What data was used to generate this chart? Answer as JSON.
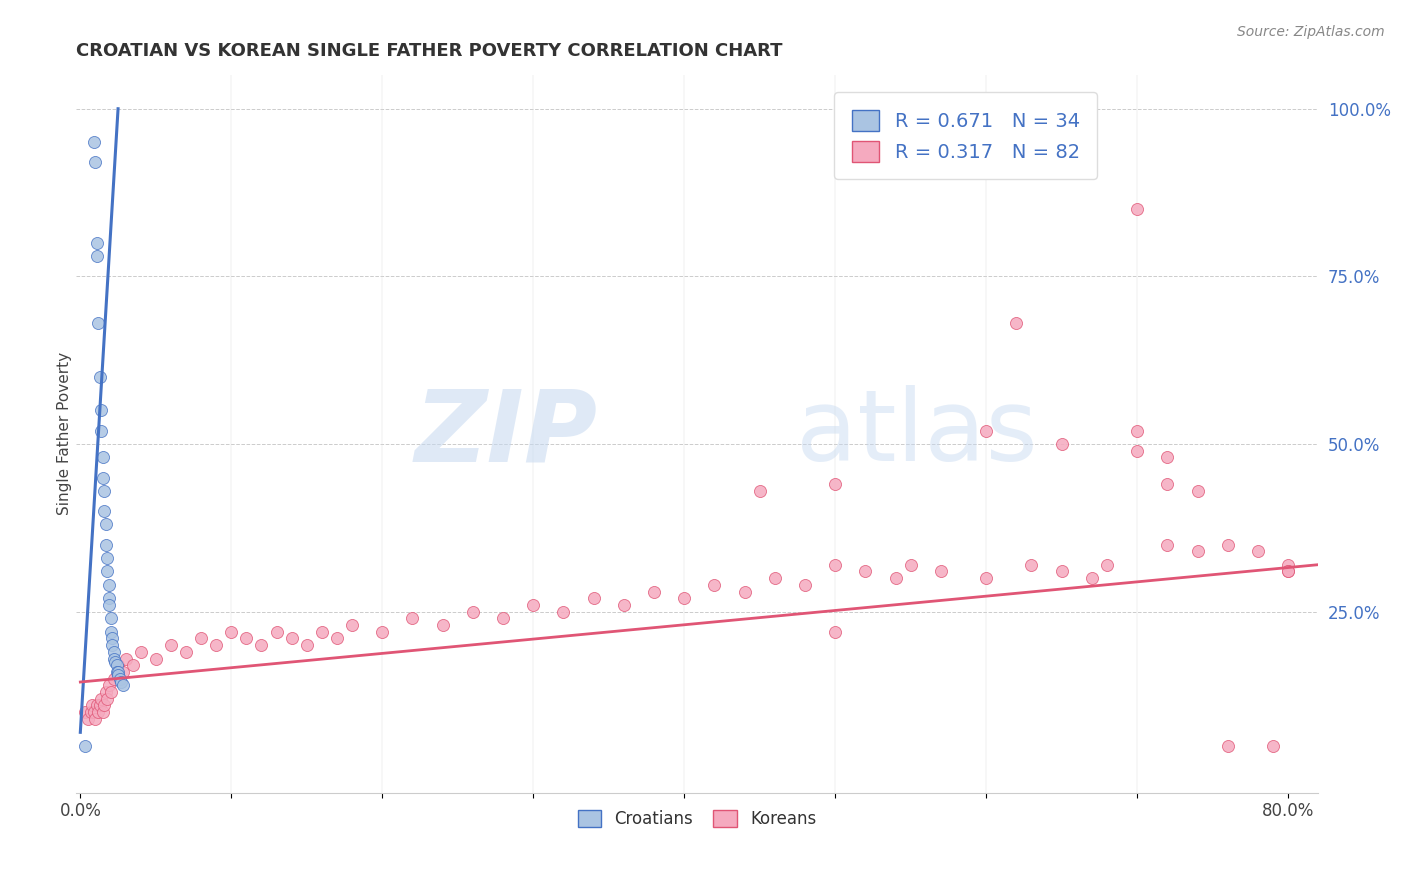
{
  "title": "CROATIAN VS KOREAN SINGLE FATHER POVERTY CORRELATION CHART",
  "source": "Source: ZipAtlas.com",
  "ylabel": "Single Father Poverty",
  "xlim_min": -0.003,
  "xlim_max": 0.82,
  "ylim_min": -0.02,
  "ylim_max": 1.05,
  "croatian_R": 0.671,
  "croatian_N": 34,
  "korean_R": 0.317,
  "korean_N": 82,
  "croatian_color": "#aac4e2",
  "korean_color": "#f5aabf",
  "trendline_croatian_color": "#4472c4",
  "trendline_korean_color": "#e05575",
  "right_tick_color": "#4472c4",
  "watermark_zip": "ZIP",
  "watermark_atlas": "atlas",
  "croatian_x": [
    0.003,
    0.009,
    0.01,
    0.011,
    0.011,
    0.012,
    0.013,
    0.014,
    0.014,
    0.015,
    0.015,
    0.016,
    0.016,
    0.017,
    0.017,
    0.018,
    0.018,
    0.019,
    0.019,
    0.019,
    0.02,
    0.02,
    0.021,
    0.021,
    0.022,
    0.022,
    0.023,
    0.024,
    0.024,
    0.025,
    0.025,
    0.026,
    0.027,
    0.028
  ],
  "croatian_y": [
    0.05,
    0.95,
    0.92,
    0.8,
    0.78,
    0.68,
    0.6,
    0.55,
    0.52,
    0.48,
    0.45,
    0.43,
    0.4,
    0.38,
    0.35,
    0.33,
    0.31,
    0.29,
    0.27,
    0.26,
    0.24,
    0.22,
    0.21,
    0.2,
    0.19,
    0.18,
    0.175,
    0.17,
    0.16,
    0.16,
    0.155,
    0.15,
    0.145,
    0.14
  ],
  "korean_x": [
    0.003,
    0.005,
    0.007,
    0.008,
    0.009,
    0.01,
    0.011,
    0.012,
    0.013,
    0.014,
    0.015,
    0.016,
    0.017,
    0.018,
    0.019,
    0.02,
    0.022,
    0.025,
    0.028,
    0.03,
    0.035,
    0.04,
    0.05,
    0.06,
    0.07,
    0.08,
    0.09,
    0.1,
    0.11,
    0.12,
    0.13,
    0.14,
    0.15,
    0.16,
    0.17,
    0.18,
    0.2,
    0.22,
    0.24,
    0.26,
    0.28,
    0.3,
    0.32,
    0.34,
    0.36,
    0.38,
    0.4,
    0.42,
    0.44,
    0.46,
    0.48,
    0.5,
    0.52,
    0.54,
    0.55,
    0.57,
    0.6,
    0.63,
    0.65,
    0.67,
    0.68,
    0.7,
    0.72,
    0.74,
    0.76,
    0.78,
    0.79,
    0.8,
    0.8,
    0.45,
    0.5,
    0.62,
    0.65,
    0.7,
    0.72,
    0.74,
    0.76,
    0.5,
    0.6,
    0.7,
    0.72,
    0.8
  ],
  "korean_y": [
    0.1,
    0.09,
    0.1,
    0.11,
    0.1,
    0.09,
    0.11,
    0.1,
    0.11,
    0.12,
    0.1,
    0.11,
    0.13,
    0.12,
    0.14,
    0.13,
    0.15,
    0.17,
    0.16,
    0.18,
    0.17,
    0.19,
    0.18,
    0.2,
    0.19,
    0.21,
    0.2,
    0.22,
    0.21,
    0.2,
    0.22,
    0.21,
    0.2,
    0.22,
    0.21,
    0.23,
    0.22,
    0.24,
    0.23,
    0.25,
    0.24,
    0.26,
    0.25,
    0.27,
    0.26,
    0.28,
    0.27,
    0.29,
    0.28,
    0.3,
    0.29,
    0.32,
    0.31,
    0.3,
    0.32,
    0.31,
    0.3,
    0.32,
    0.31,
    0.3,
    0.32,
    0.85,
    0.44,
    0.43,
    0.35,
    0.34,
    0.05,
    0.32,
    0.31,
    0.43,
    0.44,
    0.68,
    0.5,
    0.49,
    0.35,
    0.34,
    0.05,
    0.22,
    0.52,
    0.52,
    0.48,
    0.31
  ],
  "cro_trend_x": [
    0.0,
    0.025
  ],
  "cro_trend_y": [
    0.07,
    1.0
  ],
  "kor_trend_x": [
    0.0,
    0.82
  ],
  "kor_trend_y": [
    0.145,
    0.32
  ],
  "yticks": [
    0.0,
    0.25,
    0.5,
    0.75,
    1.0
  ],
  "ytick_labels": [
    "",
    "25.0%",
    "50.0%",
    "75.0%",
    "100.0%"
  ],
  "xticks": [
    0.0,
    0.1,
    0.2,
    0.3,
    0.4,
    0.5,
    0.6,
    0.7,
    0.8
  ],
  "xtick_labels": [
    "0.0%",
    "",
    "",
    "",
    "",
    "",
    "",
    "",
    "80.0%"
  ]
}
